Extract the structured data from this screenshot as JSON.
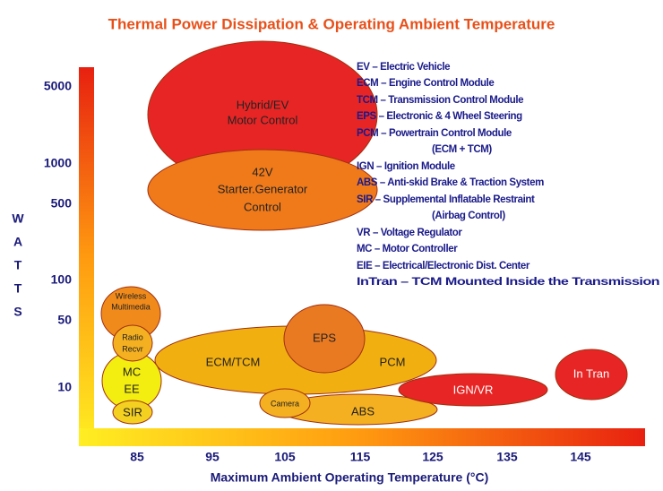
{
  "title": "Thermal Power Dissipation & Operating Ambient Temperature",
  "y_axis": {
    "label_letters": [
      "W",
      "A",
      "T",
      "T",
      "S"
    ],
    "ticks": [
      "5000",
      "1000",
      "500",
      "100",
      "50",
      "10"
    ]
  },
  "x_axis": {
    "label": "Maximum Ambient Operating Temperature (°C)",
    "ticks": [
      "85",
      "95",
      "105",
      "115",
      "125",
      "135",
      "145"
    ]
  },
  "regions": {
    "hybrid_ev": [
      "Hybrid/EV",
      "Motor Control"
    ],
    "starter_generator": [
      "42V",
      "Starter.Generator",
      "Control"
    ],
    "wireless": [
      "Wireless",
      "Multimedia"
    ],
    "radio": [
      "Radio",
      "Recvr"
    ],
    "mc_ee": [
      "MC",
      "EE"
    ],
    "sir": "SIR",
    "ecm_tcm": "ECM/TCM",
    "pcm": "PCM",
    "eps": "EPS",
    "ign_vr": "IGN/VR",
    "intran": "In Tran",
    "camera": "Camera",
    "abs": "ABS"
  },
  "legend": [
    "EV –  Electric Vehicle",
    "ECM – Engine Control Module",
    "TCM – Transmission Control Module",
    "EPS – Electronic & 4 Wheel Steering",
    "PCM – Powertrain Control Module",
    "(ECM + TCM)",
    "IGN –  Ignition Module",
    "ABS –  Anti-skid Brake & Traction System",
    "SIR –  Supplemental Inflatable Restraint",
    "(Airbag Control)",
    "VR – Voltage Regulator",
    "MC – Motor Controller",
    "EIE – Electrical/Electronic Dist. Center",
    "InTran – TCM Mounted Inside the Transmission"
  ]
}
